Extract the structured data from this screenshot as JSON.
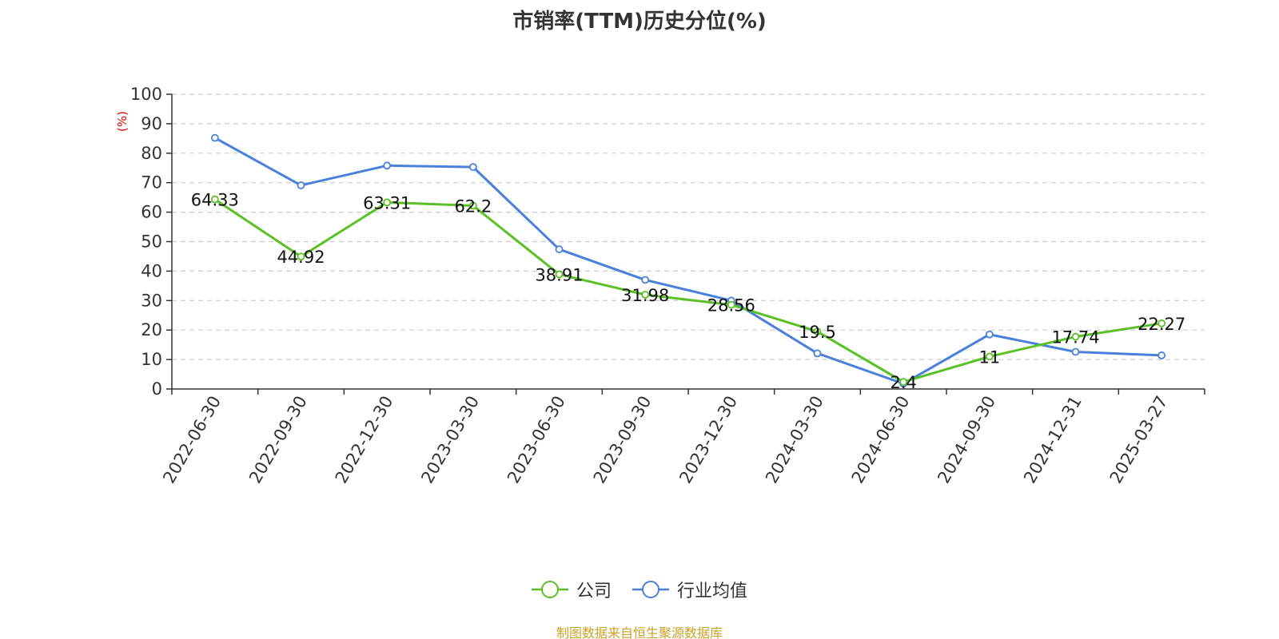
{
  "chart_data": {
    "type": "line",
    "title": "市销率(TTM)历史分位(%)",
    "ylabel": "(%)",
    "ylim": [
      0,
      100
    ],
    "yticks": [
      0,
      10,
      20,
      30,
      40,
      50,
      60,
      70,
      80,
      90,
      100
    ],
    "grid": true,
    "legend_position": "bottom-center",
    "categories": [
      "2022-06-30",
      "2022-09-30",
      "2022-12-30",
      "2023-03-30",
      "2023-06-30",
      "2023-09-30",
      "2023-12-30",
      "2024-03-30",
      "2024-06-30",
      "2024-09-30",
      "2024-12-31",
      "2025-03-27"
    ],
    "series": [
      {
        "name": "公司",
        "color": "#5ac025",
        "values": [
          64.33,
          44.92,
          63.31,
          62.2,
          38.91,
          31.98,
          28.56,
          19.5,
          2.4,
          11,
          17.74,
          22.27
        ],
        "labels": [
          "64.33",
          "44.92",
          "63.31",
          "62.2",
          "38.91",
          "31.98",
          "28.56",
          "19.5",
          "2.4",
          "11",
          "17.74",
          "22.27"
        ]
      },
      {
        "name": "行业均值",
        "color": "#4a7fdb",
        "values": [
          85.2,
          69.1,
          75.8,
          75.3,
          47.4,
          37.0,
          30.0,
          12.1,
          1.8,
          18.5,
          12.6,
          11.4
        ]
      }
    ]
  },
  "source_note": "制图数据来自恒生聚源数据库"
}
